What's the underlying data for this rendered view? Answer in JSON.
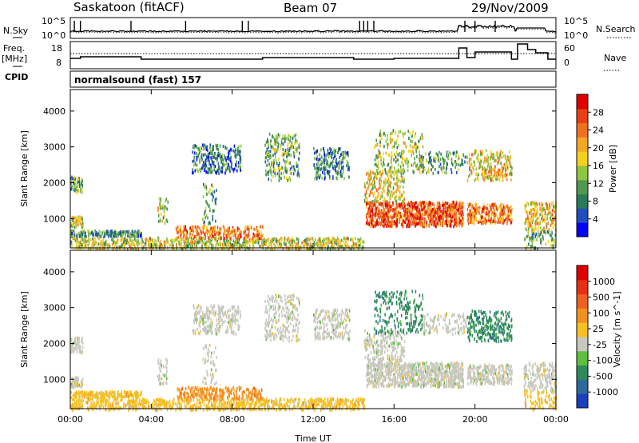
{
  "header": {
    "station": "Saskatoon (fitACF)",
    "beam": "Beam 07",
    "date": "29/Nov/2009"
  },
  "top_panels": {
    "nsky_label": "N.Sky",
    "nsky_ticks": [
      "10^5",
      "10^0"
    ],
    "nsearch_label": "N.Search",
    "nsearch_ticks": [
      "10^5",
      "10^0"
    ],
    "freq_label": "Freq.",
    "freq_unit": "[MHz]",
    "freq_ticks": [
      "18",
      "8"
    ],
    "nave_label": "Nave",
    "nave_ticks": [
      "60",
      "0"
    ],
    "cpid_label": "CPID",
    "cpid_value": "normalsound (fast) 157"
  },
  "chart_data": [
    {
      "type": "heatmap",
      "name": "power-panel",
      "ylabel": "Slant Range [km]",
      "yticks": [
        "4000",
        "3000",
        "2000",
        "1000"
      ],
      "ylim": [
        180,
        4600
      ],
      "xlim": [
        0,
        24
      ],
      "colorbar": {
        "label": "Power [dB]",
        "ticks": [
          "28",
          "24",
          "20",
          "16",
          "12",
          "8",
          "4"
        ],
        "colors": [
          "#0000ff",
          "#1f4fbf",
          "#2a7a58",
          "#4f9a50",
          "#8ec63f",
          "#f5d21a",
          "#f5a623",
          "#f07020",
          "#e84010",
          "#e00000"
        ]
      }
    },
    {
      "type": "heatmap",
      "name": "velocity-panel",
      "ylabel": "Slant Range [km]",
      "yticks": [
        "4000",
        "3000",
        "2000",
        "1000"
      ],
      "ylim": [
        180,
        4600
      ],
      "xlim": [
        0,
        24
      ],
      "xticks": [
        "00:00",
        "04:00",
        "08:00",
        "12:00",
        "16:00",
        "20:00",
        "00:00"
      ],
      "xlabel": "Time UT",
      "colorbar": {
        "label": "Velocity [m s^-1]",
        "ticks": [
          "1000",
          "500",
          "100",
          "25",
          "-25",
          "-100",
          "-500",
          "-1000"
        ],
        "colors": [
          "#1a3fbf",
          "#2a6a9a",
          "#2e8a5a",
          "#5fbf3f",
          "#c8c8c0",
          "#f5c020",
          "#f59020",
          "#f06020",
          "#e83010",
          "#e00000"
        ]
      }
    }
  ]
}
